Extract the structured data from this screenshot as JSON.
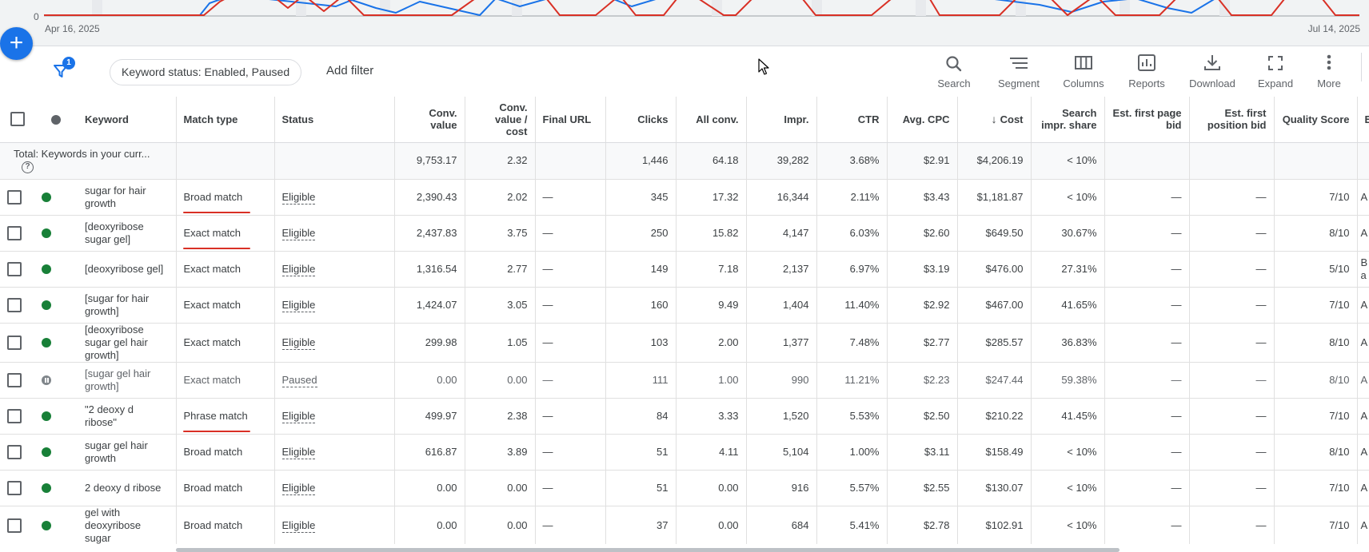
{
  "chart": {
    "zero_label": "0",
    "start_date": "Apr 16, 2025",
    "end_date": "Jul 14, 2025",
    "series_colors": {
      "clicks": "#1a73e8",
      "cost": "#d93025"
    }
  },
  "fab": {
    "label": "+"
  },
  "toolbar": {
    "filter_count": "1",
    "filter_chip": "Keyword status: Enabled, Paused",
    "add_filter": "Add filter",
    "tools": [
      {
        "label": "Search",
        "icon": "search-icon"
      },
      {
        "label": "Segment",
        "icon": "segment-icon"
      },
      {
        "label": "Columns",
        "icon": "columns-icon"
      },
      {
        "label": "Reports",
        "icon": "reports-icon"
      },
      {
        "label": "Download",
        "icon": "download-icon"
      },
      {
        "label": "Expand",
        "icon": "expand-icon"
      },
      {
        "label": "More",
        "icon": "more-icon"
      }
    ]
  },
  "table": {
    "headers": {
      "keyword": "Keyword",
      "match_type": "Match type",
      "status": "Status",
      "conv_value": "Conv. value",
      "conv_value_cost": "Conv. value / cost",
      "final_url": "Final URL",
      "clicks": "Clicks",
      "all_conv": "All conv.",
      "impr": "Impr.",
      "ctr": "CTR",
      "avg_cpc": "Avg. CPC",
      "cost": "Cost",
      "search_impr_share": "Search impr. share",
      "est_first_page_bid": "Est. first page bid",
      "est_first_position_bid": "Est. first position bid",
      "quality_score": "Quality Score",
      "extra": "E:"
    },
    "total": {
      "label": "Total: Keywords in your curr...",
      "conv_value": "9,753.17",
      "conv_value_cost": "2.32",
      "clicks": "1,446",
      "all_conv": "64.18",
      "impr": "39,282",
      "ctr": "3.68%",
      "avg_cpc": "$2.91",
      "cost": "$4,206.19",
      "search_impr_share": "< 10%"
    },
    "rows": [
      {
        "keyword": "sugar for hair growth",
        "match_type": "Broad match",
        "status": "Eligible",
        "conv_value": "2,390.43",
        "conv_value_cost": "2.02",
        "final_url": "—",
        "clicks": "345",
        "all_conv": "17.32",
        "impr": "16,344",
        "ctr": "2.11%",
        "avg_cpc": "$3.43",
        "cost": "$1,181.87",
        "search_impr_share": "< 10%",
        "est_first_page_bid": "—",
        "est_first_position_bid": "—",
        "quality_score": "7/10",
        "extra": "A",
        "state": "enabled",
        "annotated": true
      },
      {
        "keyword": "[deoxyribose sugar gel]",
        "match_type": "Exact match",
        "status": "Eligible",
        "conv_value": "2,437.83",
        "conv_value_cost": "3.75",
        "final_url": "—",
        "clicks": "250",
        "all_conv": "15.82",
        "impr": "4,147",
        "ctr": "6.03%",
        "avg_cpc": "$2.60",
        "cost": "$649.50",
        "search_impr_share": "30.67%",
        "est_first_page_bid": "—",
        "est_first_position_bid": "—",
        "quality_score": "8/10",
        "extra": "A",
        "state": "enabled",
        "annotated": true
      },
      {
        "keyword": "[deoxyribose gel]",
        "match_type": "Exact match",
        "status": "Eligible",
        "conv_value": "1,316.54",
        "conv_value_cost": "2.77",
        "final_url": "—",
        "clicks": "149",
        "all_conv": "7.18",
        "impr": "2,137",
        "ctr": "6.97%",
        "avg_cpc": "$3.19",
        "cost": "$476.00",
        "search_impr_share": "27.31%",
        "est_first_page_bid": "—",
        "est_first_position_bid": "—",
        "quality_score": "5/10",
        "extra": "B a",
        "state": "enabled",
        "annotated": false
      },
      {
        "keyword": "[sugar for hair growth]",
        "match_type": "Exact match",
        "status": "Eligible",
        "conv_value": "1,424.07",
        "conv_value_cost": "3.05",
        "final_url": "—",
        "clicks": "160",
        "all_conv": "9.49",
        "impr": "1,404",
        "ctr": "11.40%",
        "avg_cpc": "$2.92",
        "cost": "$467.00",
        "search_impr_share": "41.65%",
        "est_first_page_bid": "—",
        "est_first_position_bid": "—",
        "quality_score": "7/10",
        "extra": "A",
        "state": "enabled",
        "annotated": false
      },
      {
        "keyword": "[deoxyribose sugar gel hair growth]",
        "match_type": "Exact match",
        "status": "Eligible",
        "conv_value": "299.98",
        "conv_value_cost": "1.05",
        "final_url": "—",
        "clicks": "103",
        "all_conv": "2.00",
        "impr": "1,377",
        "ctr": "7.48%",
        "avg_cpc": "$2.77",
        "cost": "$285.57",
        "search_impr_share": "36.83%",
        "est_first_page_bid": "—",
        "est_first_position_bid": "—",
        "quality_score": "8/10",
        "extra": "A",
        "state": "enabled",
        "annotated": false
      },
      {
        "keyword": "[sugar gel hair growth]",
        "match_type": "Exact match",
        "status": "Paused",
        "conv_value": "0.00",
        "conv_value_cost": "0.00",
        "final_url": "—",
        "clicks": "111",
        "all_conv": "1.00",
        "impr": "990",
        "ctr": "11.21%",
        "avg_cpc": "$2.23",
        "cost": "$247.44",
        "search_impr_share": "59.38%",
        "est_first_page_bid": "—",
        "est_first_position_bid": "—",
        "quality_score": "8/10",
        "extra": "A",
        "state": "paused",
        "annotated": false
      },
      {
        "keyword": "\"2 deoxy d ribose\"",
        "match_type": "Phrase match",
        "status": "Eligible",
        "conv_value": "499.97",
        "conv_value_cost": "2.38",
        "final_url": "—",
        "clicks": "84",
        "all_conv": "3.33",
        "impr": "1,520",
        "ctr": "5.53%",
        "avg_cpc": "$2.50",
        "cost": "$210.22",
        "search_impr_share": "41.45%",
        "est_first_page_bid": "—",
        "est_first_position_bid": "—",
        "quality_score": "7/10",
        "extra": "A",
        "state": "enabled",
        "annotated": true
      },
      {
        "keyword": "sugar gel hair growth",
        "match_type": "Broad match",
        "status": "Eligible",
        "conv_value": "616.87",
        "conv_value_cost": "3.89",
        "final_url": "—",
        "clicks": "51",
        "all_conv": "4.11",
        "impr": "5,104",
        "ctr": "1.00%",
        "avg_cpc": "$3.11",
        "cost": "$158.49",
        "search_impr_share": "< 10%",
        "est_first_page_bid": "—",
        "est_first_position_bid": "—",
        "quality_score": "8/10",
        "extra": "A",
        "state": "enabled",
        "annotated": false
      },
      {
        "keyword": "2 deoxy d ribose",
        "match_type": "Broad match",
        "status": "Eligible",
        "conv_value": "0.00",
        "conv_value_cost": "0.00",
        "final_url": "—",
        "clicks": "51",
        "all_conv": "0.00",
        "impr": "916",
        "ctr": "5.57%",
        "avg_cpc": "$2.55",
        "cost": "$130.07",
        "search_impr_share": "< 10%",
        "est_first_page_bid": "—",
        "est_first_position_bid": "—",
        "quality_score": "7/10",
        "extra": "A",
        "state": "enabled",
        "annotated": false
      },
      {
        "keyword": "gel with deoxyribose sugar",
        "match_type": "Broad match",
        "status": "Eligible",
        "conv_value": "0.00",
        "conv_value_cost": "0.00",
        "final_url": "—",
        "clicks": "37",
        "all_conv": "0.00",
        "impr": "684",
        "ctr": "5.41%",
        "avg_cpc": "$2.78",
        "cost": "$102.91",
        "search_impr_share": "< 10%",
        "est_first_page_bid": "—",
        "est_first_position_bid": "—",
        "quality_score": "7/10",
        "extra": "A",
        "state": "enabled",
        "annotated": false
      }
    ]
  }
}
